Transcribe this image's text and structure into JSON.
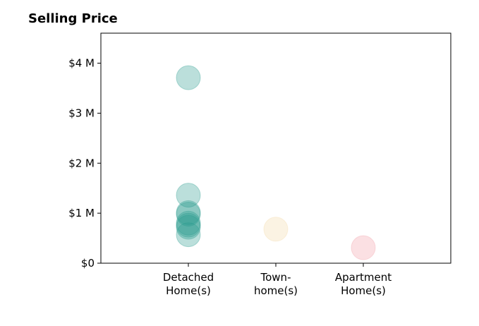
{
  "chart_data": {
    "type": "scatter",
    "title": "Selling Price",
    "xlabel": "",
    "ylabel": "",
    "categories": [
      [
        "Detached",
        "Home(s)"
      ],
      [
        "Town-",
        "home(s)"
      ],
      [
        "Apartment",
        "Home(s)"
      ]
    ],
    "xlim": [
      0,
      4
    ],
    "ylim": [
      0,
      4600000
    ],
    "y_ticks": [
      {
        "value": 0,
        "label": "$0"
      },
      {
        "value": 1000000,
        "label": "$1 M"
      },
      {
        "value": 2000000,
        "label": "$2 M"
      },
      {
        "value": 3000000,
        "label": "$3 M"
      },
      {
        "value": 4000000,
        "label": "$4 M"
      }
    ],
    "grid": false,
    "legend": "none",
    "series": [
      {
        "category_index": 0,
        "color": "#2a9d8f",
        "values": [
          3710000,
          1360000,
          1010000,
          980000,
          800000,
          760000,
          720000,
          570000
        ]
      },
      {
        "category_index": 1,
        "color": "#f4dba8",
        "values": [
          680000
        ]
      },
      {
        "category_index": 2,
        "color": "#f2a0a8",
        "values": [
          310000
        ]
      }
    ]
  }
}
